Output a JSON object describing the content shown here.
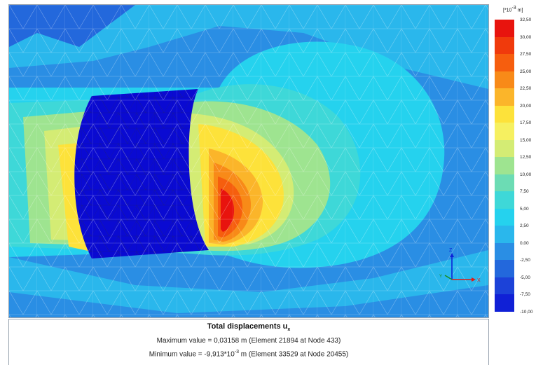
{
  "legend": {
    "unit_prefix": "[*10",
    "unit_exp": "-3",
    "unit_suffix": " m]",
    "bands": [
      {
        "label": "32,50",
        "color": "#e8140e"
      },
      {
        "label": "30,00",
        "color": "#f03a0c"
      },
      {
        "label": "27,50",
        "color": "#f65e0e"
      },
      {
        "label": "25,00",
        "color": "#f88a18"
      },
      {
        "label": "22,50",
        "color": "#fbb52a"
      },
      {
        "label": "20,00",
        "color": "#fde23a"
      },
      {
        "label": "17,50",
        "color": "#f6f060"
      },
      {
        "label": "15,00",
        "color": "#d4ec74"
      },
      {
        "label": "12,50",
        "color": "#9ee490"
      },
      {
        "label": "10,00",
        "color": "#6cdcb4"
      },
      {
        "label": "7,50",
        "color": "#3ed8d8"
      },
      {
        "label": "5,00",
        "color": "#25d2ee"
      },
      {
        "label": "2,50",
        "color": "#2ab7ec"
      },
      {
        "label": "0,00",
        "color": "#2a8ee4"
      },
      {
        "label": "-2,50",
        "color": "#2368dc"
      },
      {
        "label": "-5,00",
        "color": "#1c42d8"
      },
      {
        "label": "-7,50",
        "color": "#1020d6"
      },
      {
        "label": "-10,00",
        "color": "#0a0ad2"
      }
    ]
  },
  "axes": {
    "z_label": "Z",
    "x_label": "X",
    "y_label": "Y"
  },
  "info": {
    "title_main": "Total displacements u",
    "title_sub": "x",
    "max_line": "Maximum value = 0,03158 m (Element 21894 at Node 433)",
    "min_prefix": "Minimum value = -9,913*10",
    "min_exp": "-3",
    "min_suffix": " m (Element 33529 at Node 20455)"
  }
}
